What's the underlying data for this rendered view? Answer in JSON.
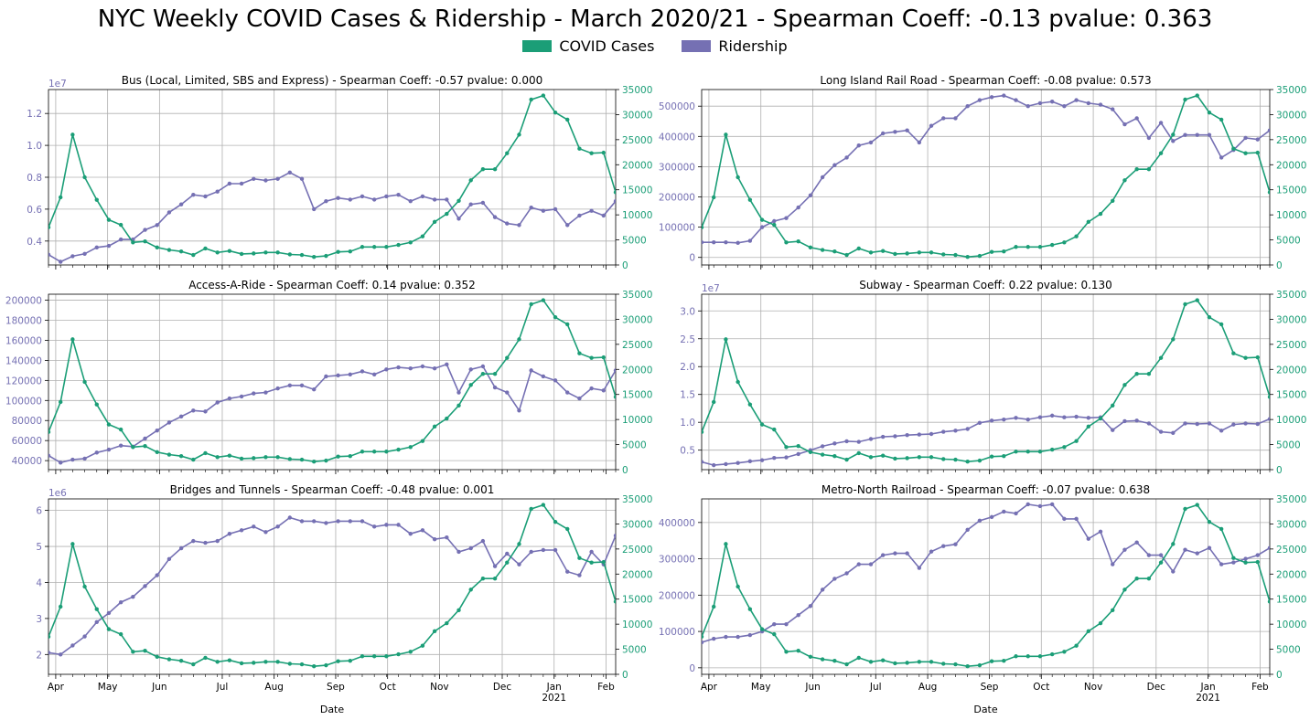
{
  "title": "NYC Weekly COVID Cases & Ridership - March 2020/21 - Spearman Coeff: -0.13 pvalue: 0.363",
  "legend": {
    "covid_label": "COVID Cases",
    "ridership_label": "Ridership",
    "covid_color": "#1b9e77",
    "ridership_color": "#7570b3"
  },
  "chart_data": [
    {
      "type": "line",
      "title": "Bus (Local, Limited, SBS and Express) - Spearman Coeff: -0.57 pvalue: 0.000",
      "xlabel": "",
      "left_axis_multiplier": "1e7",
      "left_ylim": [
        2500000,
        13500000
      ],
      "left_ticks": [
        4000000,
        6000000,
        8000000,
        10000000,
        12000000
      ],
      "left_tick_labels": [
        "0.4",
        "0.6",
        "0.8",
        "1.0",
        "1.2"
      ],
      "right_ylim": [
        0,
        35000
      ],
      "right_ticks": [
        0,
        5000,
        10000,
        15000,
        20000,
        25000,
        30000,
        35000
      ],
      "grid": true,
      "covid": [
        7500,
        13500,
        26000,
        17500,
        13000,
        9000,
        8000,
        4500,
        4700,
        3500,
        3000,
        2700,
        2000,
        3300,
        2500,
        2800,
        2200,
        2300,
        2500,
        2500,
        2100,
        2000,
        1600,
        1800,
        2600,
        2700,
        3600,
        3600,
        3600,
        4000,
        4500,
        5700,
        8600,
        10200,
        12800,
        16900,
        19100,
        19100,
        22300,
        26000,
        33000,
        33800,
        30400,
        29000,
        23200,
        22300,
        22400,
        14500
      ],
      "ridership": [
        3150000,
        2700000,
        3050000,
        3200000,
        3600000,
        3700000,
        4100000,
        4100000,
        4700000,
        5000000,
        5800000,
        6300000,
        6900000,
        6800000,
        7100000,
        7600000,
        7600000,
        7900000,
        7800000,
        7900000,
        8300000,
        7900000,
        6000000,
        6500000,
        6700000,
        6600000,
        6800000,
        6600000,
        6800000,
        6900000,
        6500000,
        6800000,
        6600000,
        6600000,
        5400000,
        6300000,
        6400000,
        5500000,
        5100000,
        5000000,
        6100000,
        5900000,
        6000000,
        5000000,
        5600000,
        5900000,
        5600000,
        6500000
      ]
    },
    {
      "type": "line",
      "title": "Long Island Rail Road - Spearman Coeff: -0.08 pvalue: 0.573",
      "xlabel": "",
      "left_ylim": [
        -25000,
        555000
      ],
      "left_ticks": [
        0,
        100000,
        200000,
        300000,
        400000,
        500000
      ],
      "left_tick_labels": [
        "0",
        "100000",
        "200000",
        "300000",
        "400000",
        "500000"
      ],
      "right_ylim": [
        0,
        35000
      ],
      "right_ticks": [
        0,
        5000,
        10000,
        15000,
        20000,
        25000,
        30000,
        35000
      ],
      "grid": true,
      "covid": [
        7500,
        13500,
        26000,
        17500,
        13000,
        9000,
        8000,
        4500,
        4700,
        3500,
        3000,
        2700,
        2000,
        3300,
        2500,
        2800,
        2200,
        2300,
        2500,
        2500,
        2100,
        2000,
        1600,
        1800,
        2600,
        2700,
        3600,
        3600,
        3600,
        4000,
        4500,
        5700,
        8600,
        10200,
        12800,
        16900,
        19100,
        19100,
        22300,
        26000,
        33000,
        33800,
        30400,
        29000,
        23200,
        22300,
        22400,
        14500
      ],
      "ridership": [
        50000,
        50000,
        50000,
        48000,
        55000,
        100000,
        120000,
        130000,
        165000,
        205000,
        265000,
        305000,
        330000,
        370000,
        380000,
        410000,
        415000,
        420000,
        380000,
        435000,
        460000,
        460000,
        500000,
        520000,
        530000,
        535000,
        520000,
        500000,
        510000,
        515000,
        500000,
        520000,
        510000,
        505000,
        490000,
        440000,
        460000,
        395000,
        445000,
        385000,
        405000,
        405000,
        405000,
        330000,
        355000,
        395000,
        390000,
        420000
      ]
    },
    {
      "type": "line",
      "title": "Access-A-Ride - Spearman Coeff: 0.14 pvalue: 0.352",
      "xlabel": "",
      "left_ylim": [
        31000,
        206000
      ],
      "left_ticks": [
        40000,
        60000,
        80000,
        100000,
        120000,
        140000,
        160000,
        180000,
        200000
      ],
      "left_tick_labels": [
        "40000",
        "60000",
        "80000",
        "100000",
        "120000",
        "140000",
        "160000",
        "180000",
        "200000"
      ],
      "right_ylim": [
        0,
        35000
      ],
      "right_ticks": [
        0,
        5000,
        10000,
        15000,
        20000,
        25000,
        30000,
        35000
      ],
      "grid": true,
      "covid": [
        7500,
        13500,
        26000,
        17500,
        13000,
        9000,
        8000,
        4500,
        4700,
        3500,
        3000,
        2700,
        2000,
        3300,
        2500,
        2800,
        2200,
        2300,
        2500,
        2500,
        2100,
        2000,
        1600,
        1800,
        2600,
        2700,
        3600,
        3600,
        3600,
        4000,
        4500,
        5700,
        8600,
        10200,
        12800,
        16900,
        19100,
        19100,
        22300,
        26000,
        33000,
        33800,
        30400,
        29000,
        23200,
        22300,
        22400,
        14500
      ],
      "ridership": [
        45000,
        38000,
        41000,
        42000,
        48000,
        51000,
        55000,
        54000,
        62000,
        70000,
        78000,
        84000,
        90000,
        89000,
        98000,
        102000,
        104000,
        107000,
        108000,
        112000,
        115000,
        115000,
        111000,
        124000,
        125000,
        126000,
        129000,
        126000,
        131000,
        133000,
        132000,
        134000,
        132000,
        136000,
        108000,
        131000,
        134000,
        113000,
        108000,
        90000,
        130000,
        124000,
        120000,
        108000,
        102000,
        112000,
        110000,
        130000
      ]
    },
    {
      "type": "line",
      "title": "Subway - Spearman Coeff: 0.22 pvalue: 0.130",
      "xlabel": "",
      "left_axis_multiplier": "1e7",
      "left_ylim": [
        1500000,
        33000000
      ],
      "left_ticks": [
        5000000,
        10000000,
        15000000,
        20000000,
        25000000,
        30000000
      ],
      "left_tick_labels": [
        "0.5",
        "1.0",
        "1.5",
        "2.0",
        "2.5",
        "3.0"
      ],
      "right_ylim": [
        0,
        35000
      ],
      "right_ticks": [
        0,
        5000,
        10000,
        15000,
        20000,
        25000,
        30000,
        35000
      ],
      "grid": true,
      "covid": [
        7500,
        13500,
        26000,
        17500,
        13000,
        9000,
        8000,
        4500,
        4700,
        3500,
        3000,
        2700,
        2000,
        3300,
        2500,
        2800,
        2200,
        2300,
        2500,
        2500,
        2100,
        2000,
        1600,
        1800,
        2600,
        2700,
        3600,
        3600,
        3600,
        4000,
        4500,
        5700,
        8600,
        10200,
        12800,
        16900,
        19100,
        19100,
        22300,
        26000,
        33000,
        33800,
        30400,
        29000,
        23200,
        22300,
        22400,
        14500
      ],
      "ridership": [
        2900000,
        2300000,
        2500000,
        2700000,
        3000000,
        3200000,
        3600000,
        3700000,
        4300000,
        5000000,
        5700000,
        6200000,
        6600000,
        6500000,
        7000000,
        7400000,
        7500000,
        7700000,
        7800000,
        7900000,
        8300000,
        8500000,
        8800000,
        9900000,
        10300000,
        10500000,
        10800000,
        10500000,
        10900000,
        11200000,
        10900000,
        11000000,
        10800000,
        10900000,
        8600000,
        10200000,
        10300000,
        9800000,
        8300000,
        8100000,
        9800000,
        9700000,
        9800000,
        8500000,
        9600000,
        9800000,
        9700000,
        10600000
      ]
    },
    {
      "type": "line",
      "title": "Bridges and Tunnels - Spearman Coeff: -0.48 pvalue: 0.001",
      "xlabel": "Date",
      "left_axis_multiplier": "1e6",
      "left_ylim": [
        1450000,
        6320000
      ],
      "left_ticks": [
        2000000,
        3000000,
        4000000,
        5000000,
        6000000
      ],
      "left_tick_labels": [
        "2",
        "3",
        "4",
        "5",
        "6"
      ],
      "right_ylim": [
        0,
        35000
      ],
      "right_ticks": [
        0,
        5000,
        10000,
        15000,
        20000,
        25000,
        30000,
        35000
      ],
      "grid": true,
      "covid": [
        7500,
        13500,
        26000,
        17500,
        13000,
        9000,
        8000,
        4500,
        4700,
        3500,
        3000,
        2700,
        2000,
        3300,
        2500,
        2800,
        2200,
        2300,
        2500,
        2500,
        2100,
        2000,
        1600,
        1800,
        2600,
        2700,
        3600,
        3600,
        3600,
        4000,
        4500,
        5700,
        8600,
        10200,
        12800,
        16900,
        19100,
        19100,
        22300,
        26000,
        33000,
        33800,
        30400,
        29000,
        23200,
        22300,
        22400,
        14500
      ],
      "ridership": [
        2050000,
        2000000,
        2250000,
        2500000,
        2900000,
        3150000,
        3450000,
        3600000,
        3900000,
        4200000,
        4650000,
        4950000,
        5150000,
        5100000,
        5150000,
        5350000,
        5450000,
        5550000,
        5400000,
        5550000,
        5800000,
        5700000,
        5700000,
        5650000,
        5700000,
        5700000,
        5700000,
        5550000,
        5600000,
        5600000,
        5350000,
        5450000,
        5200000,
        5250000,
        4850000,
        4950000,
        5150000,
        4450000,
        4800000,
        4500000,
        4850000,
        4900000,
        4900000,
        4300000,
        4200000,
        4850000,
        4500000,
        5300000
      ]
    },
    {
      "type": "line",
      "title": "Metro-North Railroad - Spearman Coeff: -0.07 pvalue: 0.638",
      "xlabel": "Date",
      "left_ylim": [
        -18000,
        465000
      ],
      "left_ticks": [
        0,
        100000,
        200000,
        300000,
        400000
      ],
      "left_tick_labels": [
        "0",
        "100000",
        "200000",
        "300000",
        "400000"
      ],
      "right_ylim": [
        0,
        35000
      ],
      "right_ticks": [
        0,
        5000,
        10000,
        15000,
        20000,
        25000,
        30000,
        35000
      ],
      "grid": true,
      "covid": [
        7500,
        13500,
        26000,
        17500,
        13000,
        9000,
        8000,
        4500,
        4700,
        3500,
        3000,
        2700,
        2000,
        3300,
        2500,
        2800,
        2200,
        2300,
        2500,
        2500,
        2100,
        2000,
        1600,
        1800,
        2600,
        2700,
        3600,
        3600,
        3600,
        4000,
        4500,
        5700,
        8600,
        10200,
        12800,
        16900,
        19100,
        19100,
        22300,
        26000,
        33000,
        33800,
        30400,
        29000,
        23200,
        22300,
        22400,
        14500
      ],
      "ridership": [
        70000,
        80000,
        85000,
        85000,
        90000,
        100000,
        120000,
        120000,
        145000,
        170000,
        215000,
        245000,
        260000,
        285000,
        285000,
        310000,
        315000,
        315000,
        275000,
        320000,
        335000,
        340000,
        380000,
        405000,
        415000,
        430000,
        425000,
        450000,
        445000,
        450000,
        410000,
        410000,
        355000,
        375000,
        285000,
        325000,
        345000,
        310000,
        310000,
        265000,
        325000,
        315000,
        330000,
        285000,
        290000,
        300000,
        310000,
        330000
      ]
    }
  ],
  "x_axis": {
    "month_labels": [
      "Apr",
      "May",
      "Jun",
      "Jul",
      "Aug",
      "Sep",
      "Oct",
      "Nov",
      "Dec",
      "Jan",
      "Feb"
    ],
    "month_week_index": [
      0.6,
      4.9,
      9.2,
      14.4,
      18.7,
      23.8,
      28.1,
      32.4,
      37.6,
      41.9,
      46.2
    ],
    "year_label": "2021"
  }
}
